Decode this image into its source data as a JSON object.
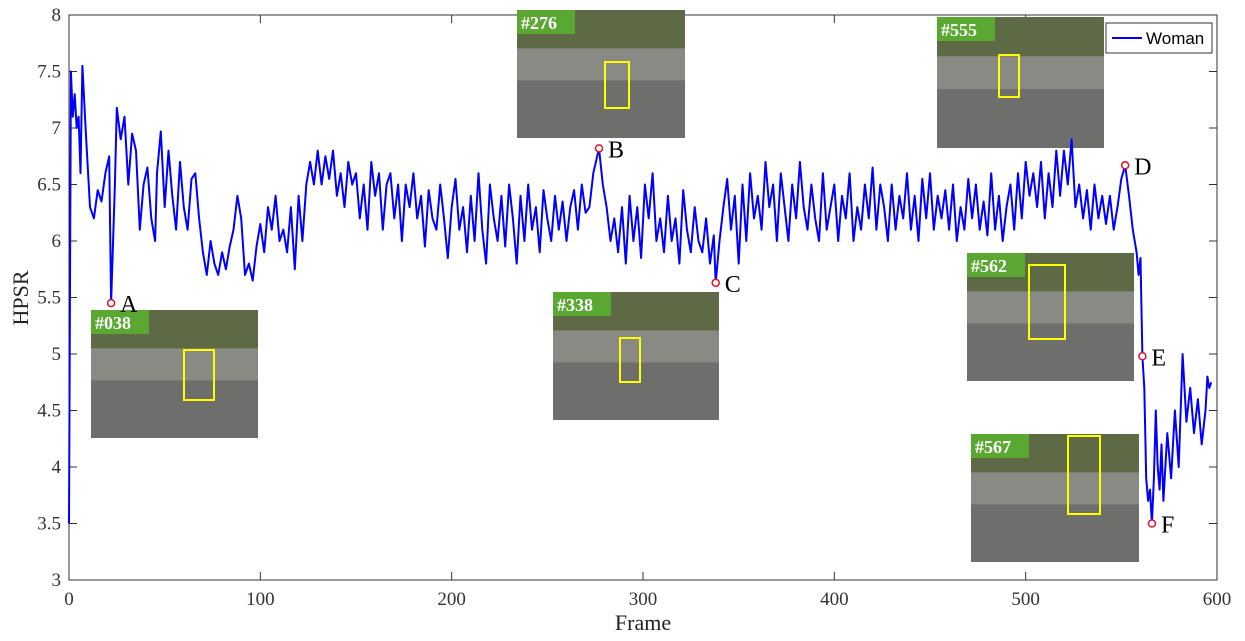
{
  "chart_data": {
    "type": "line",
    "xlabel": "Frame",
    "ylabel": "HPSR",
    "xlim": [
      0,
      600
    ],
    "ylim": [
      3,
      8
    ],
    "xticks": [
      0,
      100,
      200,
      300,
      400,
      500,
      600
    ],
    "yticks": [
      3,
      3.5,
      4,
      4.5,
      5,
      5.5,
      6,
      6.5,
      7,
      7.5,
      8
    ],
    "grid": false,
    "legend": "upper right",
    "x": [
      0,
      1,
      2,
      3,
      4,
      5,
      6,
      7,
      9,
      11,
      13,
      15,
      17,
      19,
      21,
      22,
      24,
      25,
      27,
      29,
      31,
      33,
      35,
      37,
      39,
      41,
      43,
      45,
      46,
      48,
      50,
      52,
      54,
      56,
      58,
      60,
      62,
      64,
      66,
      68,
      70,
      72,
      74,
      76,
      78,
      80,
      82,
      84,
      86,
      88,
      90,
      92,
      94,
      96,
      98,
      100,
      102,
      104,
      106,
      108,
      110,
      112,
      114,
      116,
      118,
      120,
      122,
      124,
      126,
      128,
      130,
      132,
      134,
      136,
      138,
      140,
      142,
      144,
      146,
      148,
      150,
      152,
      154,
      156,
      158,
      160,
      162,
      164,
      166,
      168,
      170,
      172,
      174,
      176,
      178,
      180,
      182,
      184,
      186,
      188,
      190,
      192,
      194,
      196,
      198,
      200,
      202,
      204,
      206,
      208,
      210,
      212,
      214,
      216,
      218,
      220,
      222,
      224,
      226,
      228,
      230,
      232,
      234,
      236,
      238,
      240,
      242,
      244,
      246,
      248,
      250,
      252,
      254,
      256,
      258,
      260,
      262,
      264,
      266,
      268,
      270,
      272,
      274,
      277,
      279,
      281,
      283,
      285,
      287,
      289,
      291,
      293,
      295,
      297,
      299,
      301,
      303,
      305,
      307,
      309,
      311,
      313,
      315,
      317,
      319,
      321,
      323,
      325,
      327,
      329,
      331,
      333,
      335,
      337,
      338,
      340,
      342,
      344,
      346,
      348,
      350,
      352,
      354,
      356,
      358,
      360,
      362,
      364,
      366,
      368,
      370,
      372,
      374,
      376,
      378,
      380,
      382,
      384,
      386,
      388,
      390,
      392,
      394,
      396,
      398,
      400,
      402,
      404,
      406,
      408,
      410,
      412,
      414,
      416,
      418,
      420,
      422,
      424,
      426,
      428,
      430,
      432,
      434,
      436,
      438,
      440,
      442,
      444,
      446,
      448,
      450,
      452,
      454,
      456,
      458,
      460,
      462,
      464,
      466,
      468,
      470,
      472,
      474,
      476,
      478,
      480,
      482,
      484,
      486,
      488,
      490,
      492,
      494,
      496,
      498,
      500,
      502,
      504,
      506,
      508,
      510,
      512,
      514,
      516,
      518,
      520,
      522,
      524,
      526,
      528,
      530,
      532,
      534,
      536,
      538,
      540,
      542,
      544,
      546,
      548,
      550,
      552,
      554,
      556,
      558,
      559,
      560,
      561,
      562,
      563,
      564,
      565,
      566,
      567,
      568,
      569,
      570,
      571,
      572,
      574,
      576,
      578,
      580,
      582,
      584,
      586,
      588,
      590,
      592,
      594,
      595,
      596,
      597
    ],
    "series": [
      {
        "name": "Woman",
        "color": "#0000ff",
        "values": [
          3.5,
          7.5,
          7.1,
          7.3,
          7.0,
          7.1,
          6.6,
          7.55,
          6.9,
          6.3,
          6.2,
          6.45,
          6.35,
          6.6,
          6.75,
          5.45,
          6.5,
          7.18,
          6.9,
          7.1,
          6.5,
          6.95,
          6.8,
          6.1,
          6.5,
          6.65,
          6.2,
          6.0,
          6.6,
          6.97,
          6.3,
          6.8,
          6.4,
          6.1,
          6.7,
          6.3,
          6.1,
          6.55,
          6.6,
          6.2,
          5.9,
          5.7,
          6.0,
          5.8,
          5.7,
          5.9,
          5.75,
          5.95,
          6.1,
          6.4,
          6.2,
          5.7,
          5.8,
          5.65,
          5.95,
          6.15,
          5.9,
          6.3,
          6.1,
          6.4,
          6.0,
          6.1,
          5.9,
          6.3,
          5.75,
          6.4,
          6.0,
          6.5,
          6.7,
          6.5,
          6.8,
          6.5,
          6.75,
          6.55,
          6.8,
          6.4,
          6.6,
          6.3,
          6.7,
          6.5,
          6.6,
          6.2,
          6.5,
          6.1,
          6.7,
          6.4,
          6.6,
          6.1,
          6.5,
          6.6,
          6.2,
          6.5,
          6.0,
          6.5,
          6.3,
          6.6,
          6.2,
          6.4,
          5.95,
          6.45,
          6.2,
          6.1,
          6.5,
          6.2,
          5.85,
          6.3,
          6.55,
          6.1,
          6.3,
          5.9,
          6.4,
          6.0,
          6.6,
          6.1,
          5.8,
          6.5,
          6.2,
          6.0,
          6.4,
          5.95,
          6.5,
          6.2,
          5.8,
          6.4,
          6.0,
          6.5,
          6.1,
          6.3,
          5.9,
          6.45,
          6.2,
          6.0,
          6.4,
          6.1,
          6.35,
          6.0,
          6.3,
          6.45,
          6.1,
          6.5,
          6.25,
          6.3,
          6.6,
          6.82,
          6.5,
          6.3,
          6.0,
          6.2,
          5.9,
          6.3,
          5.8,
          6.4,
          6.0,
          6.3,
          5.85,
          6.5,
          6.2,
          6.6,
          6.0,
          6.2,
          5.9,
          6.4,
          6.0,
          6.2,
          5.8,
          6.45,
          6.1,
          5.9,
          6.3,
          6.0,
          5.9,
          6.2,
          5.8,
          6.05,
          5.63,
          6.0,
          6.3,
          6.55,
          6.1,
          6.4,
          5.8,
          6.5,
          6.0,
          6.6,
          6.2,
          6.4,
          6.1,
          6.7,
          6.3,
          6.5,
          6.0,
          6.6,
          6.3,
          6.0,
          6.5,
          6.2,
          6.7,
          6.3,
          6.1,
          6.5,
          6.2,
          6.0,
          6.6,
          6.1,
          6.3,
          6.5,
          6.0,
          6.4,
          6.2,
          6.6,
          6.0,
          6.3,
          6.1,
          6.5,
          6.2,
          6.65,
          6.1,
          6.5,
          6.3,
          6.0,
          6.5,
          6.1,
          6.4,
          6.2,
          6.6,
          6.1,
          6.4,
          6.0,
          6.55,
          6.2,
          6.6,
          6.1,
          6.4,
          6.2,
          6.45,
          6.1,
          6.5,
          6.0,
          6.3,
          6.1,
          6.55,
          6.2,
          6.5,
          6.1,
          6.35,
          6.05,
          6.6,
          6.1,
          6.4,
          6.0,
          6.3,
          6.5,
          6.1,
          6.6,
          6.2,
          6.7,
          6.4,
          6.6,
          6.3,
          6.7,
          6.2,
          6.6,
          6.3,
          6.8,
          6.4,
          6.8,
          6.5,
          6.9,
          6.3,
          6.5,
          6.2,
          6.45,
          6.1,
          6.5,
          6.2,
          6.4,
          6.15,
          6.4,
          6.1,
          6.3,
          6.55,
          6.67,
          6.4,
          6.1,
          5.9,
          5.7,
          5.85,
          4.98,
          4.7,
          3.9,
          3.7,
          3.8,
          3.5,
          3.9,
          4.5,
          4.0,
          3.8,
          4.2,
          3.7,
          4.3,
          3.9,
          4.5,
          4.0,
          5.0,
          4.4,
          4.7,
          4.3,
          4.6,
          4.2,
          4.5,
          4.8,
          4.7,
          4.75
        ]
      }
    ],
    "annotations": [
      {
        "label": "A",
        "x": 22,
        "y": 5.45
      },
      {
        "label": "B",
        "x": 277,
        "y": 6.82
      },
      {
        "label": "C",
        "x": 338,
        "y": 5.63
      },
      {
        "label": "D",
        "x": 552,
        "y": 6.67
      },
      {
        "label": "E",
        "x": 561,
        "y": 4.98
      },
      {
        "label": "F",
        "x": 566,
        "y": 3.5
      }
    ],
    "insets": [
      {
        "label": "#038"
      },
      {
        "label": "#276"
      },
      {
        "label": "#338"
      },
      {
        "label": "#555"
      },
      {
        "label": "#562"
      },
      {
        "label": "#567"
      }
    ]
  }
}
